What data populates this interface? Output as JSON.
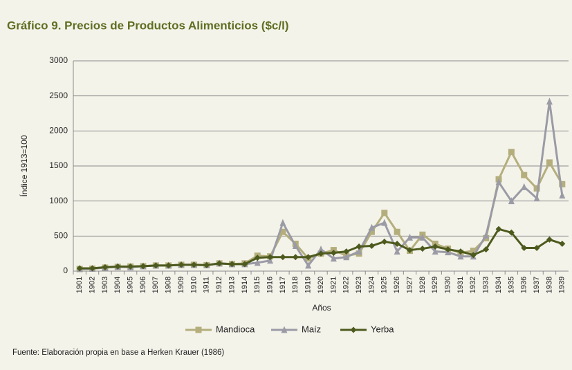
{
  "chart_data": {
    "type": "line",
    "title": "Gráfico 9. Precios de Productos Alimenticios ($c/l)",
    "y_label": "Índice 1913=100",
    "x_label": "Años",
    "source": "Fuente: Elaboración propia en base a Herken Krauer (1986)",
    "categories": [
      "1901",
      "1902",
      "1903",
      "1904",
      "1905",
      "1906",
      "1907",
      "1908",
      "1909",
      "1910",
      "1911",
      "1912",
      "1913",
      "1914",
      "1915",
      "1916",
      "1917",
      "1918",
      "1919",
      "1920",
      "1921",
      "1922",
      "1923",
      "1924",
      "1925",
      "1926",
      "1927",
      "1928",
      "1929",
      "1930",
      "1931",
      "1932",
      "1933",
      "1934",
      "1935",
      "1936",
      "1937",
      "1938",
      "1939"
    ],
    "series": [
      {
        "name": "Mandioca",
        "color": "#b4ae7c",
        "marker": "square",
        "values": [
          30,
          35,
          50,
          60,
          65,
          70,
          80,
          80,
          90,
          90,
          85,
          110,
          100,
          110,
          220,
          210,
          560,
          390,
          180,
          250,
          300,
          220,
          250,
          560,
          830,
          560,
          290,
          520,
          390,
          320,
          260,
          290,
          470,
          1310,
          1700,
          1370,
          1180,
          1550,
          1240
        ]
      },
      {
        "name": "Maíz",
        "color": "#9b9ba6",
        "marker": "triangle",
        "values": [
          30,
          35,
          50,
          60,
          55,
          70,
          80,
          80,
          90,
          90,
          85,
          110,
          100,
          100,
          120,
          150,
          690,
          360,
          80,
          310,
          180,
          200,
          280,
          620,
          690,
          280,
          480,
          480,
          280,
          270,
          210,
          210,
          510,
          1270,
          1000,
          1200,
          1040,
          2420,
          1080
        ]
      },
      {
        "name": "Yerba",
        "color": "#4d5a1e",
        "marker": "diamond",
        "values": [
          40,
          40,
          55,
          65,
          65,
          70,
          80,
          80,
          90,
          90,
          85,
          110,
          100,
          100,
          190,
          200,
          200,
          200,
          200,
          250,
          260,
          280,
          350,
          360,
          420,
          390,
          300,
          320,
          350,
          310,
          280,
          230,
          310,
          600,
          550,
          330,
          330,
          450,
          390
        ]
      }
    ],
    "ylim": [
      0,
      3000
    ],
    "yticks": [
      0,
      500,
      1000,
      1500,
      2000,
      2500,
      3000
    ],
    "grid": true
  }
}
